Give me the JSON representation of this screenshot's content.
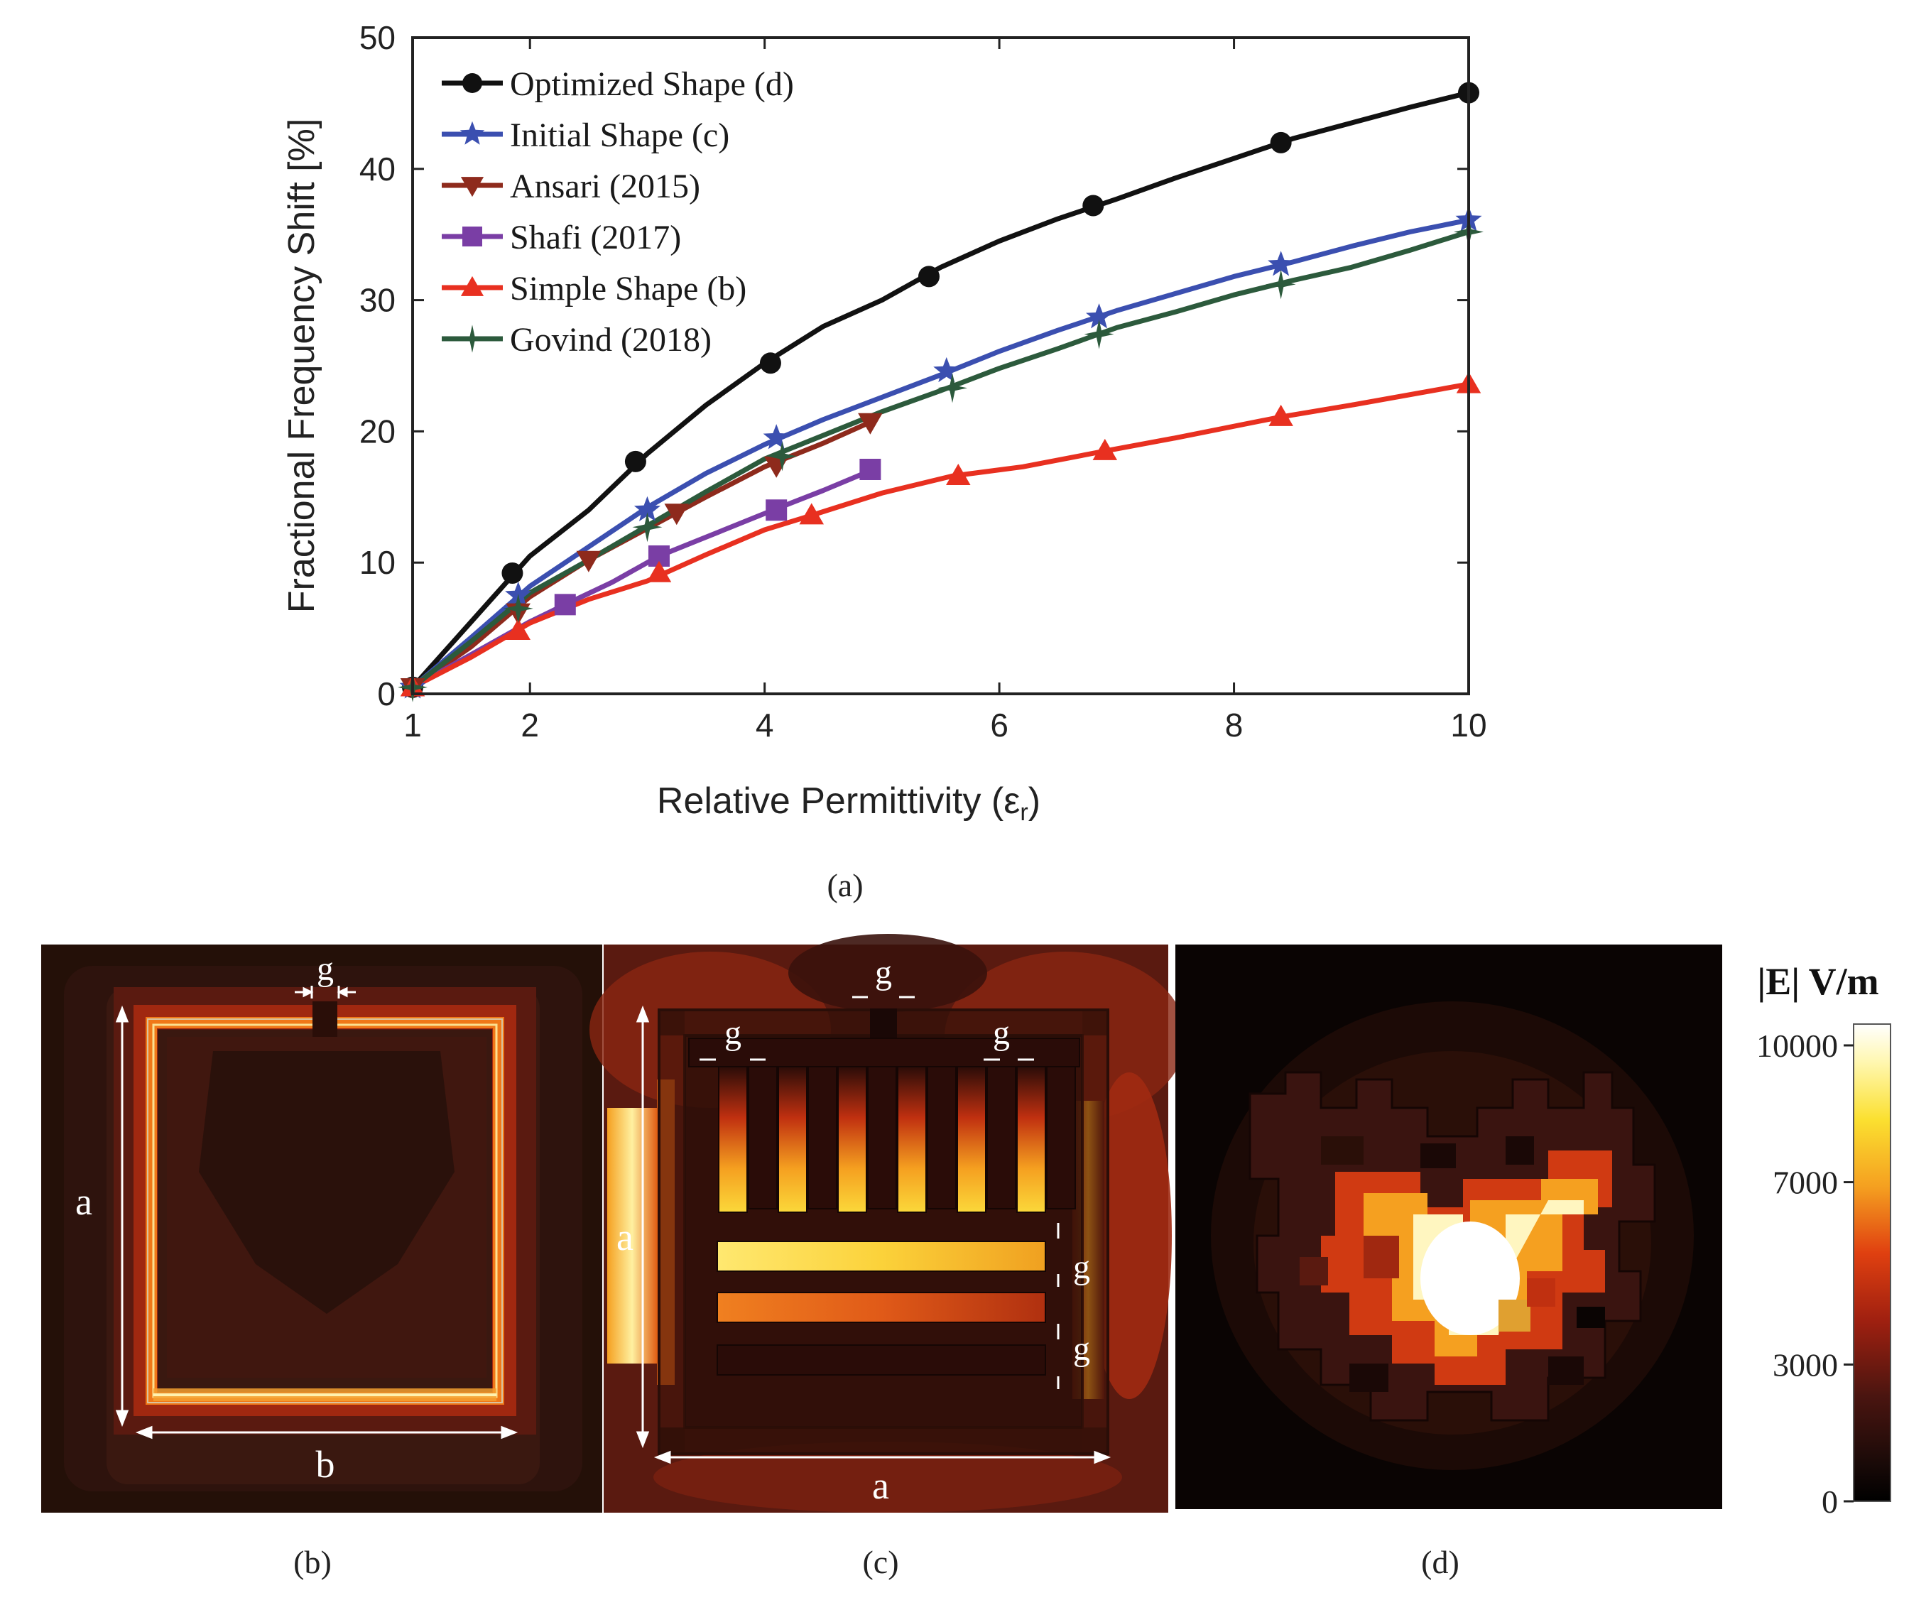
{
  "chart_data": {
    "type": "line",
    "ylabel": "Fractional Frequency Shift [%]",
    "xlabel": "Relative Permittivity (ε",
    "xlabel_sub": "r",
    "xlabel_close": ")",
    "xlim": [
      1,
      10
    ],
    "ylim": [
      0,
      50
    ],
    "xticks": [
      1,
      2,
      4,
      6,
      8,
      10
    ],
    "yticks": [
      0,
      10,
      20,
      30,
      40,
      50
    ],
    "grid": false,
    "legend_position": "top-left",
    "caption": "(a)",
    "series": [
      {
        "name": "Optimized Shape (d)",
        "color": "#111111",
        "marker": "circle",
        "line": [
          [
            1,
            0.5
          ],
          [
            1.5,
            5.5
          ],
          [
            2,
            10.5
          ],
          [
            2.5,
            14
          ],
          [
            3,
            18.3
          ],
          [
            3.5,
            22
          ],
          [
            4,
            25.2
          ],
          [
            4.5,
            28
          ],
          [
            5,
            30
          ],
          [
            5.5,
            32.5
          ],
          [
            6,
            34.5
          ],
          [
            6.5,
            36.2
          ],
          [
            7,
            37.7
          ],
          [
            7.5,
            39.3
          ],
          [
            8,
            40.8
          ],
          [
            8.5,
            42.3
          ],
          [
            9,
            43.5
          ],
          [
            9.5,
            44.7
          ],
          [
            10,
            45.8
          ]
        ],
        "markers": [
          [
            1,
            0.5
          ],
          [
            1.85,
            9.2
          ],
          [
            2.9,
            17.7
          ],
          [
            4.05,
            25.2
          ],
          [
            5.4,
            31.8
          ],
          [
            6.8,
            37.2
          ],
          [
            8.4,
            42
          ],
          [
            10,
            45.8
          ]
        ]
      },
      {
        "name": "Initial Shape (c)",
        "color": "#3b4fb0",
        "marker": "star",
        "line": [
          [
            1,
            0.5
          ],
          [
            1.5,
            4.3
          ],
          [
            2,
            8.2
          ],
          [
            2.5,
            11.2
          ],
          [
            3,
            14.2
          ],
          [
            3.5,
            16.8
          ],
          [
            4,
            19
          ],
          [
            4.5,
            20.9
          ],
          [
            5,
            22.6
          ],
          [
            5.5,
            24.3
          ],
          [
            6,
            26.1
          ],
          [
            6.5,
            27.7
          ],
          [
            7,
            29.2
          ],
          [
            7.5,
            30.5
          ],
          [
            8,
            31.8
          ],
          [
            8.5,
            32.9
          ],
          [
            9,
            34.1
          ],
          [
            9.5,
            35.2
          ],
          [
            10,
            36.1
          ]
        ],
        "markers": [
          [
            1,
            0.5
          ],
          [
            1.9,
            7.5
          ],
          [
            3.0,
            14.0
          ],
          [
            4.1,
            19.5
          ],
          [
            5.55,
            24.6
          ],
          [
            6.85,
            28.7
          ],
          [
            8.4,
            32.7
          ],
          [
            10,
            36.1
          ]
        ]
      },
      {
        "name": "Ansari (2015)",
        "color": "#8e2a1c",
        "marker": "triangle-down",
        "line": [
          [
            1,
            0.5
          ],
          [
            1.5,
            3.6
          ],
          [
            2,
            7.4
          ],
          [
            2.5,
            10.2
          ],
          [
            3,
            12.6
          ],
          [
            3.5,
            15
          ],
          [
            4,
            17.3
          ],
          [
            4.5,
            19.1
          ],
          [
            4.9,
            20.7
          ]
        ],
        "markers": [
          [
            1,
            0.5
          ],
          [
            1.9,
            6.2
          ],
          [
            2.5,
            10.2
          ],
          [
            3.25,
            13.8
          ],
          [
            4.1,
            17.4
          ],
          [
            4.9,
            20.7
          ]
        ]
      },
      {
        "name": "Shafi (2017)",
        "color": "#7a3ea5",
        "marker": "square",
        "line": [
          [
            1,
            0.5
          ],
          [
            1.5,
            3
          ],
          [
            2,
            5.5
          ],
          [
            2.3,
            6.8
          ],
          [
            2.7,
            8.5
          ],
          [
            3.1,
            10.5
          ],
          [
            3.6,
            12.3
          ],
          [
            4.1,
            14.1
          ],
          [
            4.5,
            15.5
          ],
          [
            4.9,
            17
          ]
        ],
        "markers": [
          [
            2.3,
            6.8
          ],
          [
            3.1,
            10.5
          ],
          [
            4.1,
            14
          ],
          [
            4.9,
            17.1
          ]
        ]
      },
      {
        "name": "Simple Shape (b)",
        "color": "#e83020",
        "marker": "triangle-up",
        "line": [
          [
            1,
            0.5
          ],
          [
            1.5,
            2.8
          ],
          [
            2,
            5.4
          ],
          [
            2.5,
            7.2
          ],
          [
            3,
            8.6
          ],
          [
            3.5,
            10.6
          ],
          [
            4,
            12.5
          ],
          [
            4.4,
            13.6
          ],
          [
            5,
            15.3
          ],
          [
            5.6,
            16.6
          ],
          [
            6.2,
            17.3
          ],
          [
            6.9,
            18.5
          ],
          [
            7.5,
            19.5
          ],
          [
            8.4,
            21.1
          ],
          [
            9,
            22
          ],
          [
            10,
            23.6
          ]
        ],
        "markers": [
          [
            1,
            0.5
          ],
          [
            1.9,
            4.8
          ],
          [
            3.1,
            9.2
          ],
          [
            4.4,
            13.6
          ],
          [
            5.65,
            16.6
          ],
          [
            6.9,
            18.5
          ],
          [
            8.4,
            21.1
          ],
          [
            10,
            23.6
          ]
        ]
      },
      {
        "name": "Govind (2018)",
        "color": "#2c5a3c",
        "marker": "cross-star",
        "line": [
          [
            1,
            0.5
          ],
          [
            1.5,
            4
          ],
          [
            2,
            7.7
          ],
          [
            2.5,
            10.2
          ],
          [
            3,
            12.8
          ],
          [
            3.5,
            15.4
          ],
          [
            4,
            17.9
          ],
          [
            4.5,
            19.7
          ],
          [
            5,
            21.5
          ],
          [
            5.5,
            23.1
          ],
          [
            6,
            24.8
          ],
          [
            6.5,
            26.3
          ],
          [
            7,
            27.9
          ],
          [
            7.5,
            29.1
          ],
          [
            8,
            30.4
          ],
          [
            8.5,
            31.5
          ],
          [
            9,
            32.5
          ],
          [
            9.5,
            33.8
          ],
          [
            10,
            35.2
          ]
        ],
        "markers": [
          [
            1,
            0.5
          ],
          [
            1.9,
            6.5
          ],
          [
            3.0,
            12.7
          ],
          [
            4.15,
            18.1
          ],
          [
            5.6,
            23.3
          ],
          [
            6.85,
            27.4
          ],
          [
            8.4,
            31.2
          ],
          [
            10,
            35.2
          ]
        ]
      }
    ]
  },
  "panels": {
    "b": {
      "caption": "(b)",
      "labels": [
        "g",
        "a",
        "b"
      ]
    },
    "c": {
      "caption": "(c)",
      "labels": [
        "g",
        "g",
        "g",
        "a",
        "g",
        "g",
        "a"
      ]
    },
    "d": {
      "caption": "(d)"
    }
  },
  "colorbar": {
    "title": "|E| V/m",
    "ticks": [
      "10000",
      "7000",
      "3000",
      "0"
    ],
    "tick_values": [
      10000,
      7000,
      3000,
      0
    ],
    "max": 10000
  }
}
